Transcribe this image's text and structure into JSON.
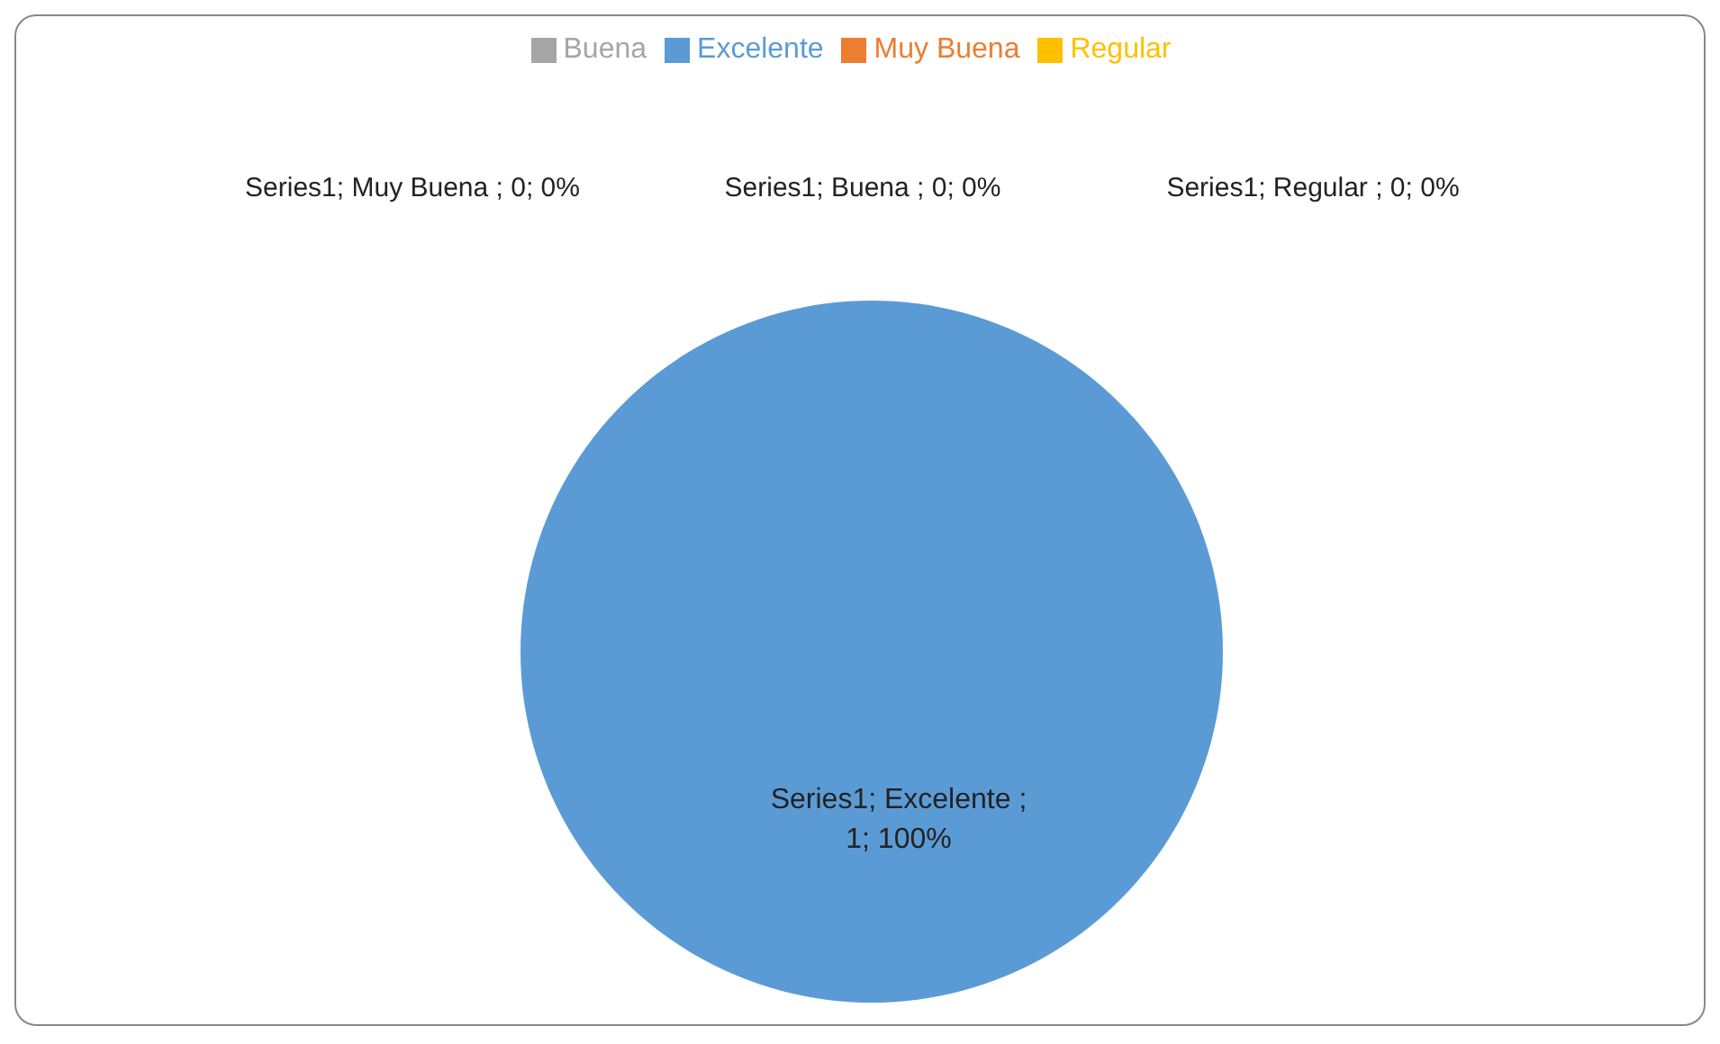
{
  "chart_data": {
    "type": "pie",
    "categories": [
      "Excelente ",
      "Muy Buena ",
      "Buena ",
      "Regular "
    ],
    "values": [
      1,
      0,
      0,
      0
    ],
    "colors": [
      "#5b9bd5",
      "#ed7d31",
      "#a5a5a5",
      "#ffc000"
    ],
    "value_labels": [
      "Series1; Excelente ; 1; 100%",
      "Series1; Muy Buena ; 0; 0%",
      "Series1; Buena ; 0; 0%",
      "Series1; Regular ; 0; 0%"
    ],
    "legend": "top"
  }
}
